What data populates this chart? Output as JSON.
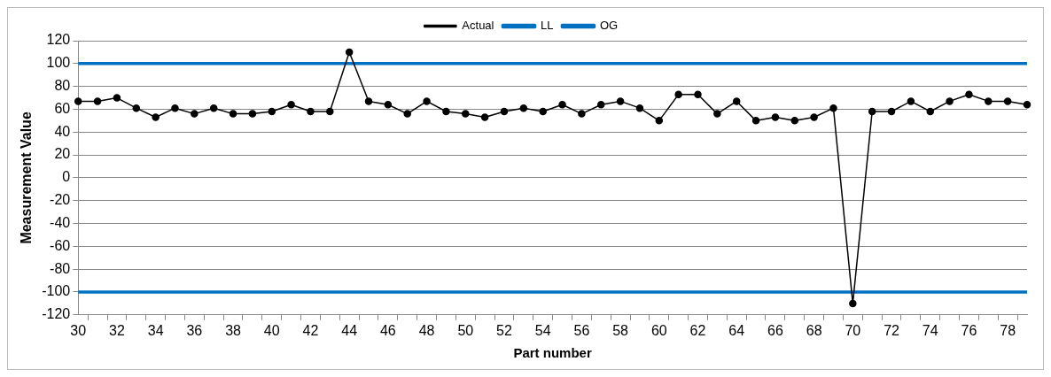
{
  "chart_data": {
    "type": "line",
    "xlabel": "Part number",
    "ylabel": "Measurement Value",
    "categories": [
      "30",
      null,
      "32",
      null,
      "34",
      null,
      "36",
      null,
      "38",
      null,
      "40",
      null,
      "42",
      null,
      "44",
      null,
      "46",
      null,
      "48",
      null,
      "50",
      null,
      "52",
      null,
      "54",
      null,
      "56",
      null,
      "58",
      null,
      "60",
      null,
      "62",
      null,
      "64",
      null,
      "66",
      null,
      "68",
      null,
      "70",
      null,
      "72",
      null,
      "74",
      null,
      "76",
      null,
      "78",
      null
    ],
    "series": [
      {
        "name": "Actual",
        "color": "#000000",
        "marker": "circle",
        "values": [
          67,
          67,
          70,
          61,
          53,
          61,
          56,
          61,
          56,
          56,
          58,
          64,
          58,
          58,
          110,
          67,
          64,
          56,
          67,
          58,
          56,
          53,
          58,
          61,
          58,
          64,
          56,
          64,
          67,
          61,
          50,
          73,
          73,
          56,
          67,
          50,
          53,
          50,
          53,
          61,
          -110,
          58,
          58,
          67,
          58,
          67,
          73,
          67,
          67,
          64
        ]
      },
      {
        "name": "LL",
        "color": "#0070c0",
        "marker": "none",
        "values": [
          -100,
          -100,
          -100,
          -100,
          -100,
          -100,
          -100,
          -100,
          -100,
          -100,
          -100,
          -100,
          -100,
          -100,
          -100,
          -100,
          -100,
          -100,
          -100,
          -100,
          -100,
          -100,
          -100,
          -100,
          -100,
          -100,
          -100,
          -100,
          -100,
          -100,
          -100,
          -100,
          -100,
          -100,
          -100,
          -100,
          -100,
          -100,
          -100,
          -100,
          -100,
          -100,
          -100,
          -100,
          -100,
          -100,
          -100,
          -100,
          -100,
          -100
        ]
      },
      {
        "name": "OG",
        "color": "#0070c0",
        "marker": "none",
        "values": [
          100,
          100,
          100,
          100,
          100,
          100,
          100,
          100,
          100,
          100,
          100,
          100,
          100,
          100,
          100,
          100,
          100,
          100,
          100,
          100,
          100,
          100,
          100,
          100,
          100,
          100,
          100,
          100,
          100,
          100,
          100,
          100,
          100,
          100,
          100,
          100,
          100,
          100,
          100,
          100,
          100,
          100,
          100,
          100,
          100,
          100,
          100,
          100,
          100,
          100
        ]
      }
    ],
    "ylim": [
      -120,
      120
    ],
    "yticks": [
      -120,
      -100,
      -80,
      -60,
      -40,
      -20,
      0,
      20,
      40,
      60,
      80,
      100,
      120
    ],
    "grid": "y",
    "legend": "top"
  }
}
